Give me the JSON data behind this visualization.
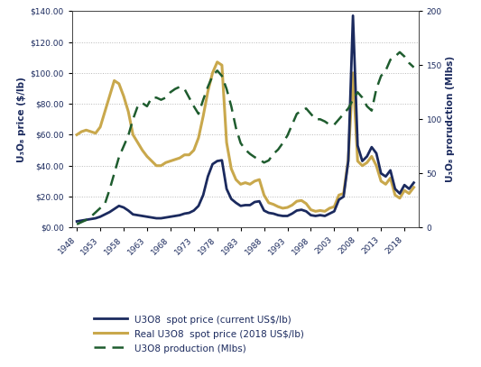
{
  "years": [
    1948,
    1949,
    1950,
    1951,
    1952,
    1953,
    1954,
    1955,
    1956,
    1957,
    1958,
    1959,
    1960,
    1961,
    1962,
    1963,
    1964,
    1965,
    1966,
    1967,
    1968,
    1969,
    1970,
    1971,
    1972,
    1973,
    1974,
    1975,
    1976,
    1977,
    1978,
    1979,
    1980,
    1981,
    1982,
    1983,
    1984,
    1985,
    1986,
    1987,
    1988,
    1989,
    1990,
    1991,
    1992,
    1993,
    1994,
    1995,
    1996,
    1997,
    1998,
    1999,
    2000,
    2001,
    2002,
    2003,
    2004,
    2005,
    2006,
    2007,
    2008,
    2009,
    2010,
    2011,
    2012,
    2013,
    2014,
    2015,
    2016,
    2017,
    2018,
    2019,
    2020
  ],
  "spot_nominal": [
    4.0,
    4.5,
    5.0,
    5.5,
    6.0,
    7.0,
    8.5,
    10.0,
    12.0,
    14.0,
    13.0,
    11.0,
    8.5,
    8.0,
    7.5,
    7.0,
    6.5,
    6.0,
    6.0,
    6.5,
    7.0,
    7.5,
    8.0,
    9.0,
    9.5,
    11.0,
    14.0,
    21.0,
    33.0,
    41.0,
    43.0,
    43.5,
    25.0,
    18.5,
    16.0,
    14.0,
    14.5,
    14.5,
    16.5,
    17.0,
    11.0,
    9.5,
    9.0,
    8.0,
    7.5,
    7.5,
    9.0,
    11.0,
    11.5,
    10.5,
    8.0,
    7.5,
    8.0,
    7.5,
    9.0,
    10.5,
    18.0,
    20.0,
    43.0,
    137.0,
    53.0,
    43.0,
    46.0,
    52.0,
    48.0,
    35.0,
    33.0,
    37.0,
    25.0,
    22.0,
    27.5,
    25.0,
    29.0
  ],
  "spot_real_raw": [
    60.0,
    62.0,
    63.0,
    62.0,
    61.0,
    65.0,
    75.0,
    85.0,
    95.0,
    93.0,
    85.0,
    75.0,
    60.0,
    55.0,
    50.0,
    46.0,
    43.0,
    40.0,
    40.0,
    42.0,
    43.0,
    44.0,
    45.0,
    47.0,
    47.0,
    50.0,
    58.0,
    72.0,
    88.0,
    100.0,
    107.0,
    105.0,
    55.0,
    38.0,
    31.0,
    28.0,
    29.0,
    28.0,
    30.0,
    31.0,
    21.0,
    16.0,
    15.0,
    13.5,
    12.5,
    13.0,
    14.5,
    17.0,
    17.5,
    15.5,
    11.5,
    10.5,
    11.0,
    10.5,
    12.5,
    13.5,
    21.0,
    22.0,
    44.0,
    100.0,
    43.0,
    40.0,
    42.0,
    46.0,
    40.0,
    30.0,
    28.0,
    32.0,
    21.0,
    19.0,
    24.0,
    22.0,
    26.0
  ],
  "production_raw": [
    3.0,
    5.0,
    7.0,
    10.0,
    14.0,
    18.0,
    22.0,
    35.0,
    50.0,
    65.0,
    75.0,
    85.0,
    100.0,
    112.0,
    115.0,
    112.0,
    120.0,
    120.0,
    118.0,
    120.0,
    125.0,
    128.0,
    130.0,
    128.0,
    120.0,
    112.0,
    105.0,
    118.0,
    130.0,
    140.0,
    145.0,
    140.0,
    128.0,
    112.0,
    92.0,
    78.0,
    72.0,
    68.0,
    65.0,
    63.0,
    60.0,
    62.0,
    68.0,
    72.0,
    78.0,
    85.0,
    95.0,
    105.0,
    108.0,
    110.0,
    105.0,
    100.0,
    100.0,
    98.0,
    95.0,
    95.0,
    100.0,
    105.0,
    110.0,
    118.0,
    125.0,
    120.0,
    112.0,
    108.0,
    128.0,
    140.0,
    145.0,
    155.0,
    158.0,
    162.0,
    158.0,
    152.0,
    148.0
  ],
  "nominal_color": "#1b2a5e",
  "real_color": "#c9a84c",
  "production_color": "#1e5c2e",
  "background_color": "#ffffff",
  "ylim_left": [
    0,
    140
  ],
  "ylim_right": [
    0,
    200
  ],
  "yticks_left": [
    0,
    20,
    40,
    60,
    80,
    100,
    120,
    140
  ],
  "yticks_right": [
    0,
    50,
    100,
    150,
    200
  ],
  "xticks": [
    1948,
    1953,
    1958,
    1963,
    1968,
    1973,
    1978,
    1983,
    1988,
    1993,
    1998,
    2003,
    2008,
    2013,
    2018
  ],
  "ylabel_left": "U₃O₈ price ($/lb)",
  "ylabel_right": "U₃O₈ prorudction (Mlbs)",
  "legend_labels": [
    "U3O8  spot price (current US$/lb)",
    "Real U3O8  spot price (2018 US$/lb)",
    "U3O8 production (Mlbs)"
  ]
}
